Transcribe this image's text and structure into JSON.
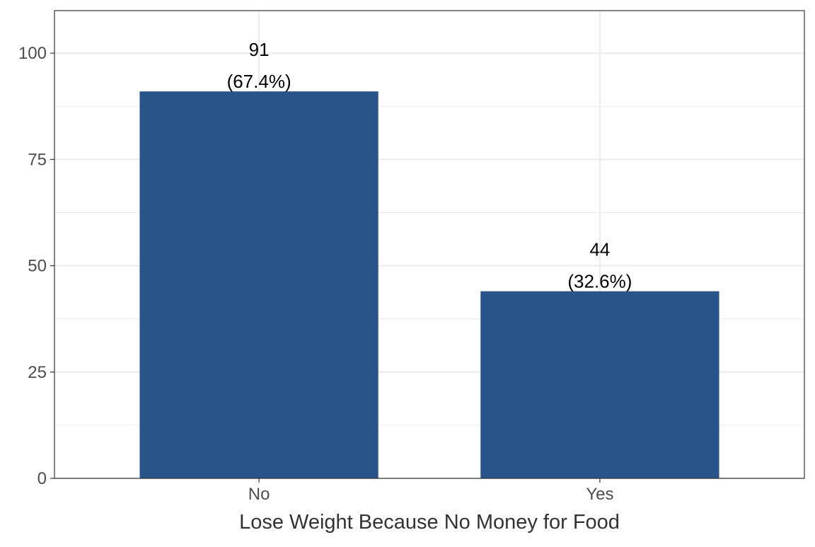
{
  "chart_data": {
    "type": "bar",
    "title": "",
    "xlabel": "Lose Weight Because No Money for Food",
    "ylabel": "",
    "categories": [
      "No",
      "Yes"
    ],
    "values": [
      91,
      44
    ],
    "percent_labels": [
      "(67.4%)",
      "(32.6%)"
    ],
    "value_labels": [
      "91",
      "44"
    ],
    "ylim": [
      0,
      110
    ],
    "yticks": [
      0,
      25,
      50,
      75,
      100
    ],
    "ytick_labels": [
      "0",
      "25",
      "50",
      "75",
      "100"
    ],
    "grid": true,
    "legend": "none",
    "bar_color": "#29548A"
  }
}
